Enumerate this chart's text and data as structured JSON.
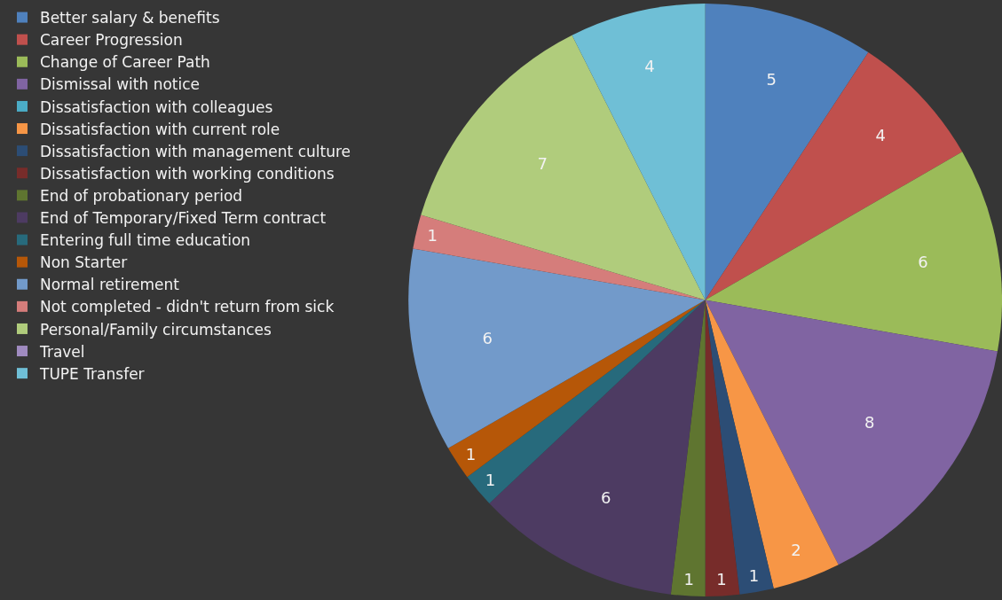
{
  "chart_data": {
    "type": "pie",
    "categories": [
      "Better salary & benefits",
      "Career Progression",
      "Change of Career Path",
      "Dismissal with notice",
      "Dissatisfaction with colleagues",
      "Dissatisfaction with current role",
      "Dissatisfaction with management culture",
      "Dissatisfaction with working conditions",
      "End of probationary period",
      "End of Temporary/Fixed Term contract",
      "Entering full time education",
      "Non Starter",
      "Normal retirement",
      "Not completed - didn't return from sick",
      "Personal/Family circumstances",
      "Travel",
      "TUPE Transfer"
    ],
    "values": [
      5,
      4,
      6,
      8,
      0,
      2,
      1,
      1,
      1,
      6,
      1,
      1,
      6,
      1,
      7,
      0,
      4
    ],
    "value_labels": [
      "5",
      "4",
      "6",
      "8",
      null,
      "2",
      "1",
      "1",
      "1",
      "6",
      "1",
      "1",
      "6",
      "1",
      "7",
      null,
      "4"
    ],
    "colors": [
      "#4f81bd",
      "#c0504d",
      "#9bbb59",
      "#8064a2",
      "#4bacc6",
      "#f79646",
      "#2c4d75",
      "#772c2a",
      "#5f7530",
      "#4d3b62",
      "#276a7c",
      "#b65708",
      "#729aca",
      "#d57d7b",
      "#b0cc7c",
      "#a08bc0",
      "#6fbfd6"
    ],
    "legend": "left"
  }
}
